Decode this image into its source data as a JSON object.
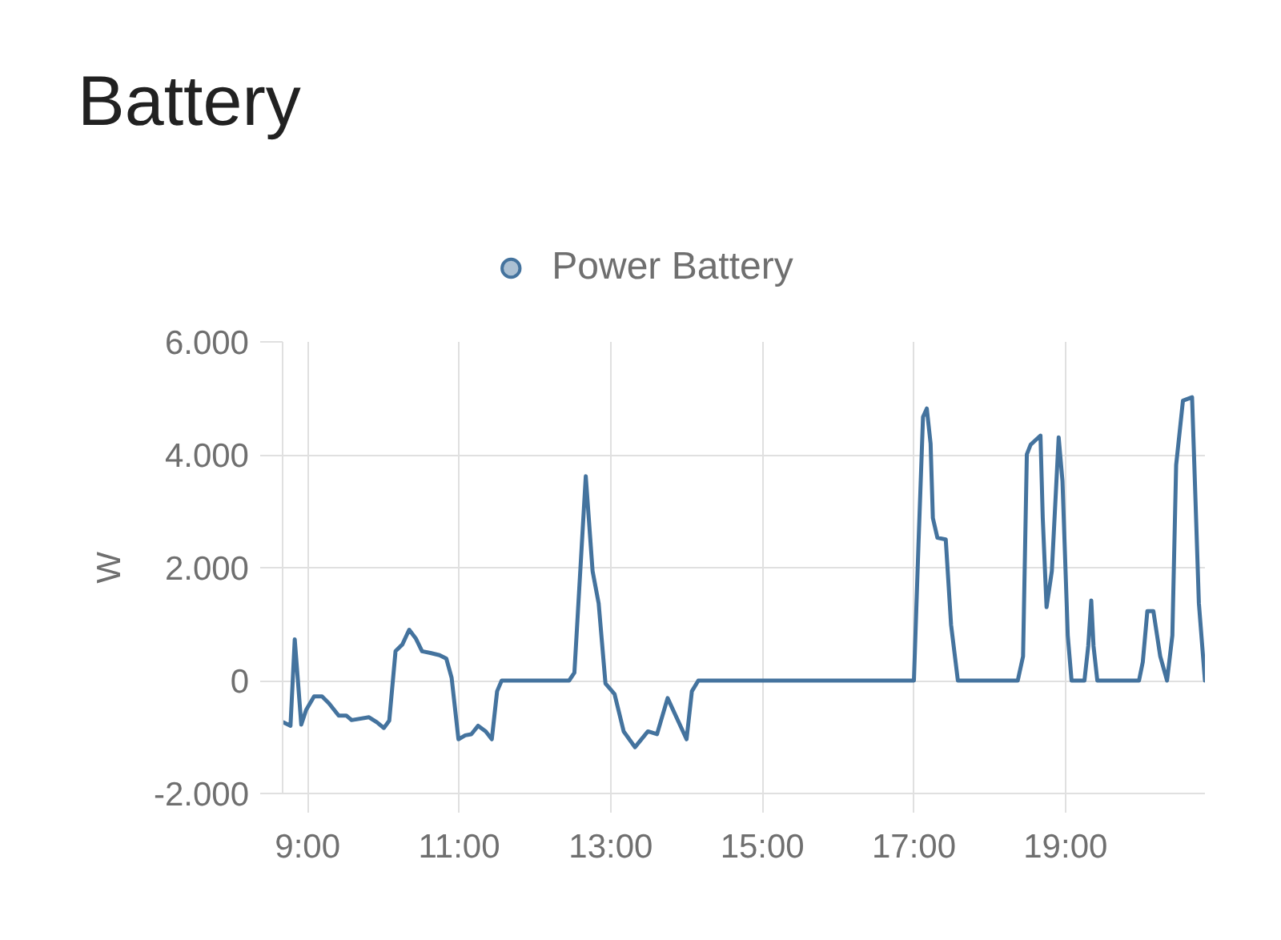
{
  "chart_data": {
    "type": "line",
    "title": "Battery",
    "ylabel": "W",
    "x": [
      8.683,
      8.774,
      8.83,
      8.916,
      8.98,
      9.085,
      9.19,
      9.28,
      9.41,
      9.51,
      9.58,
      9.81,
      9.915,
      10.006,
      10.077,
      10.16,
      10.25,
      10.34,
      10.43,
      10.51,
      10.62,
      10.74,
      10.83,
      10.9,
      10.99,
      11.08,
      11.16,
      11.25,
      11.35,
      11.43,
      11.5,
      11.56,
      12.45,
      12.52,
      12.67,
      12.76,
      12.84,
      12.93,
      13.05,
      13.17,
      13.32,
      13.49,
      13.61,
      13.75,
      14.0,
      14.07,
      14.155,
      17.0,
      17.06,
      17.12,
      17.17,
      17.22,
      17.25,
      17.31,
      17.42,
      17.49,
      17.58,
      18.37,
      18.44,
      18.49,
      18.54,
      18.67,
      18.7,
      18.75,
      18.82,
      18.91,
      18.96,
      19.03,
      19.08,
      19.25,
      19.3,
      19.34,
      19.37,
      19.42,
      19.97,
      20.02,
      20.08,
      20.16,
      20.25,
      20.34,
      20.41,
      20.46,
      20.55,
      20.67,
      20.7,
      20.76,
      20.84
    ],
    "series": [
      {
        "name": "Power Battery",
        "color": "#44739e",
        "values": [
          -740,
          -800,
          730,
          -780,
          -520,
          -280,
          -280,
          -400,
          -620,
          -620,
          -700,
          -650,
          -740,
          -840,
          -710,
          520,
          640,
          900,
          740,
          520,
          490,
          450,
          390,
          50,
          -1040,
          -970,
          -950,
          -800,
          -900,
          -1040,
          -190,
          0,
          0,
          140,
          3620,
          1940,
          1370,
          -50,
          -240,
          -900,
          -1180,
          -900,
          -950,
          -310,
          -1040,
          -190,
          0,
          0,
          2410,
          4670,
          4820,
          4200,
          2880,
          2530,
          2500,
          990,
          0,
          0,
          430,
          4010,
          4180,
          4340,
          2880,
          1300,
          1940,
          4310,
          3540,
          800,
          0,
          0,
          610,
          1420,
          610,
          0,
          0,
          330,
          1230,
          1230,
          430,
          0,
          800,
          3820,
          4960,
          5020,
          3820,
          1370,
          0
        ]
      }
    ],
    "xlim": [
      8.67,
      20.84
    ],
    "ylim": [
      -2000,
      6000
    ],
    "xticks": [
      {
        "value": 9,
        "label": "9:00"
      },
      {
        "value": 11,
        "label": "11:00"
      },
      {
        "value": 13,
        "label": "13:00"
      },
      {
        "value": 15,
        "label": "15:00"
      },
      {
        "value": 17,
        "label": "17:00"
      },
      {
        "value": 19,
        "label": "19:00"
      }
    ],
    "yticks": [
      {
        "value": -2000,
        "label": "-2.000"
      },
      0,
      {
        "value": 2000,
        "label": "2.000"
      },
      {
        "value": 4000,
        "label": "4.000"
      },
      {
        "value": 6000,
        "label": "6.000"
      }
    ],
    "grid": true,
    "legend": "top"
  }
}
